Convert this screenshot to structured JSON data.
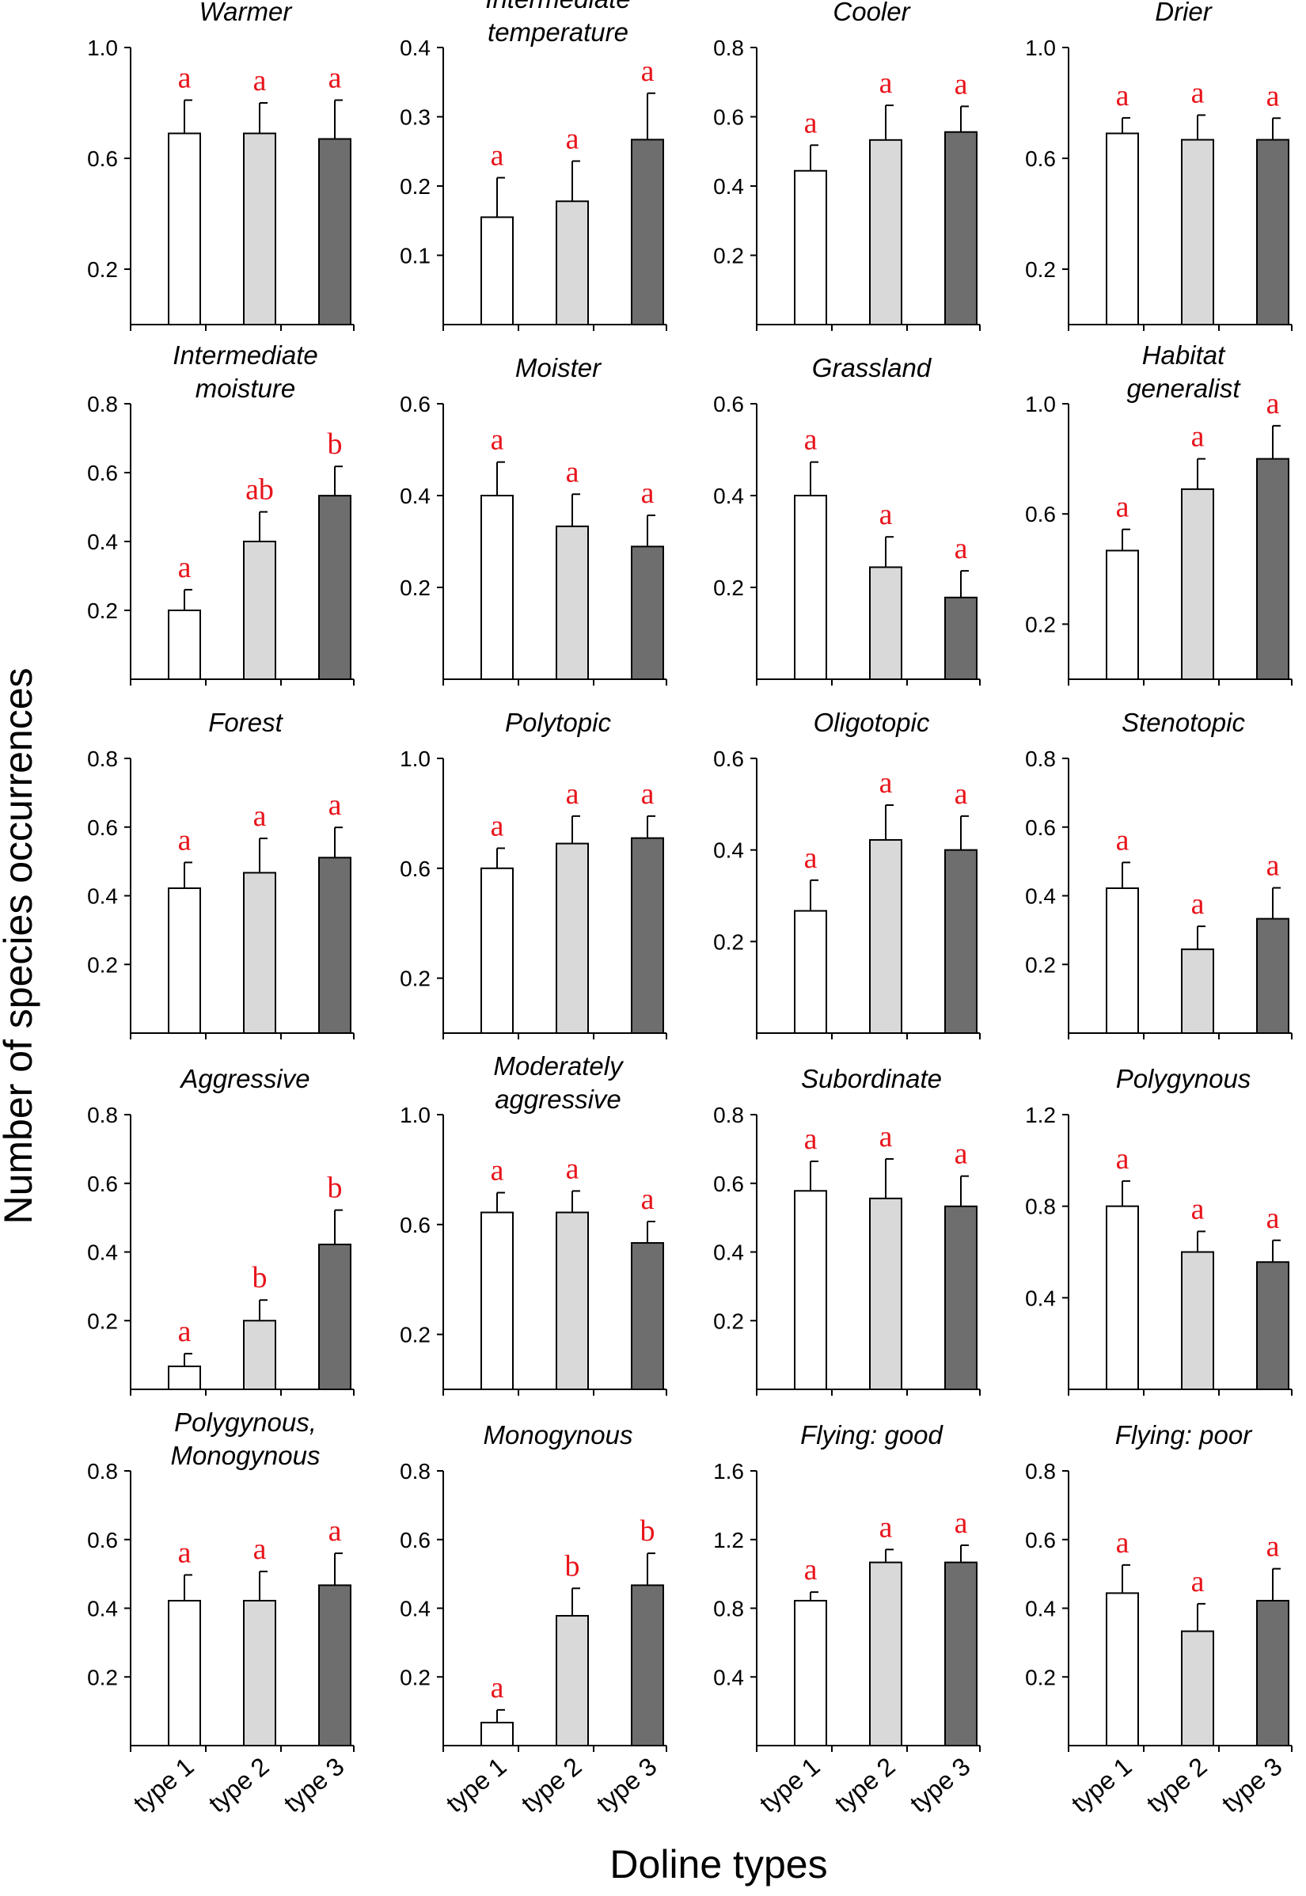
{
  "chart_data": {
    "type": "bar",
    "ylabel": "Number of species occurrences",
    "xlabel": "Doline types",
    "categories": [
      "type 1",
      "type 2",
      "type 3"
    ],
    "colors": [
      "#ffffff",
      "#d9d9d9",
      "#6e6e6e"
    ],
    "stroke_color": "#000000",
    "letter_color": "#e8141b",
    "panels": [
      {
        "title": [
          "Warmer"
        ],
        "ylim": [
          0,
          1.0
        ],
        "yticks": [
          "0.2",
          "0.6",
          "1.0"
        ],
        "values": [
          0.69,
          0.69,
          0.67
        ],
        "errors": [
          0.12,
          0.11,
          0.14
        ],
        "letters": [
          "a",
          "a",
          "a"
        ]
      },
      {
        "title": [
          "Intermediate",
          "temperature"
        ],
        "ylim": [
          0,
          0.4
        ],
        "yticks": [
          "0.1",
          "0.2",
          "0.3",
          "0.4"
        ],
        "values": [
          0.155,
          0.178,
          0.267
        ],
        "errors": [
          0.057,
          0.058,
          0.067
        ],
        "letters": [
          "a",
          "a",
          "a"
        ]
      },
      {
        "title": [
          "Cooler"
        ],
        "ylim": [
          0,
          0.8
        ],
        "yticks": [
          "0.2",
          "0.4",
          "0.6",
          "0.8"
        ],
        "values": [
          0.444,
          0.533,
          0.556
        ],
        "errors": [
          0.074,
          0.1,
          0.074
        ],
        "letters": [
          "a",
          "a",
          "a"
        ]
      },
      {
        "title": [
          "Drier"
        ],
        "ylim": [
          0,
          1.0
        ],
        "yticks": [
          "0.2",
          "0.6",
          "1.0"
        ],
        "values": [
          0.69,
          0.667,
          0.667
        ],
        "errors": [
          0.056,
          0.089,
          0.078
        ],
        "letters": [
          "a",
          "a",
          "a"
        ]
      },
      {
        "title": [
          "Intermediate",
          "moisture"
        ],
        "ylim": [
          0,
          0.8
        ],
        "yticks": [
          "0.2",
          "0.4",
          "0.6",
          "0.8"
        ],
        "values": [
          0.2,
          0.4,
          0.533
        ],
        "errors": [
          0.06,
          0.086,
          0.085
        ],
        "letters": [
          "a",
          "ab",
          "b"
        ]
      },
      {
        "title": [
          "Moister"
        ],
        "ylim": [
          0,
          0.6
        ],
        "yticks": [
          "0.2",
          "0.4",
          "0.6"
        ],
        "values": [
          0.4,
          0.333,
          0.289
        ],
        "errors": [
          0.073,
          0.07,
          0.068
        ],
        "letters": [
          "a",
          "a",
          "a"
        ]
      },
      {
        "title": [
          "Grassland"
        ],
        "ylim": [
          0,
          0.6
        ],
        "yticks": [
          "0.2",
          "0.4",
          "0.6"
        ],
        "values": [
          0.4,
          0.244,
          0.178
        ],
        "errors": [
          0.073,
          0.066,
          0.058
        ],
        "letters": [
          "a",
          "a",
          "a"
        ]
      },
      {
        "title": [
          "Habitat",
          "generalist"
        ],
        "ylim": [
          0,
          1.0
        ],
        "yticks": [
          "0.2",
          "0.6",
          "1.0"
        ],
        "values": [
          0.467,
          0.69,
          0.8
        ],
        "errors": [
          0.077,
          0.11,
          0.12
        ],
        "letters": [
          "a",
          "a",
          "a"
        ]
      },
      {
        "title": [
          "Forest"
        ],
        "ylim": [
          0,
          0.8
        ],
        "yticks": [
          "0.2",
          "0.4",
          "0.6",
          "0.8"
        ],
        "values": [
          0.422,
          0.467,
          0.511
        ],
        "errors": [
          0.075,
          0.1,
          0.088
        ],
        "letters": [
          "a",
          "a",
          "a"
        ]
      },
      {
        "title": [
          "Polytopic"
        ],
        "ylim": [
          0,
          1.0
        ],
        "yticks": [
          "0.2",
          "0.6",
          "1.0"
        ],
        "values": [
          0.6,
          0.69,
          0.71
        ],
        "errors": [
          0.073,
          0.1,
          0.08
        ],
        "letters": [
          "a",
          "a",
          "a"
        ]
      },
      {
        "title": [
          "Oligotopic"
        ],
        "ylim": [
          0,
          0.6
        ],
        "yticks": [
          "0.2",
          "0.4",
          "0.6"
        ],
        "values": [
          0.267,
          0.422,
          0.4
        ],
        "errors": [
          0.067,
          0.076,
          0.074
        ],
        "letters": [
          "a",
          "a",
          "a"
        ]
      },
      {
        "title": [
          "Stenotopic"
        ],
        "ylim": [
          0,
          0.8
        ],
        "yticks": [
          "0.2",
          "0.4",
          "0.6",
          "0.8"
        ],
        "values": [
          0.422,
          0.244,
          0.333
        ],
        "errors": [
          0.075,
          0.067,
          0.09
        ],
        "letters": [
          "a",
          "a",
          "a"
        ]
      },
      {
        "title": [
          "Aggressive"
        ],
        "ylim": [
          0,
          0.8
        ],
        "yticks": [
          "0.2",
          "0.4",
          "0.6",
          "0.8"
        ],
        "values": [
          0.067,
          0.2,
          0.422
        ],
        "errors": [
          0.037,
          0.06,
          0.1
        ],
        "letters": [
          "a",
          "b",
          "b"
        ]
      },
      {
        "title": [
          "Moderately",
          "aggressive"
        ],
        "ylim": [
          0,
          1.0
        ],
        "yticks": [
          "0.2",
          "0.6",
          "1.0"
        ],
        "values": [
          0.644,
          0.644,
          0.533
        ],
        "errors": [
          0.072,
          0.078,
          0.078
        ],
        "letters": [
          "a",
          "a",
          "a"
        ]
      },
      {
        "title": [
          "Subordinate"
        ],
        "ylim": [
          0,
          0.8
        ],
        "yticks": [
          "0.2",
          "0.4",
          "0.6",
          "0.8"
        ],
        "values": [
          0.578,
          0.556,
          0.533
        ],
        "errors": [
          0.086,
          0.115,
          0.088
        ],
        "letters": [
          "a",
          "a",
          "a"
        ]
      },
      {
        "title": [
          "Polygynous"
        ],
        "ylim": [
          0,
          1.2
        ],
        "yticks": [
          "0.4",
          "0.8",
          "1.2"
        ],
        "values": [
          0.8,
          0.6,
          0.556
        ],
        "errors": [
          0.11,
          0.09,
          0.095
        ],
        "letters": [
          "a",
          "a",
          "a"
        ]
      },
      {
        "title": [
          "Polygynous,",
          "Monogynous"
        ],
        "ylim": [
          0,
          0.8
        ],
        "yticks": [
          "0.2",
          "0.4",
          "0.6",
          "0.8"
        ],
        "values": [
          0.422,
          0.422,
          0.467
        ],
        "errors": [
          0.075,
          0.085,
          0.093
        ],
        "letters": [
          "a",
          "a",
          "a"
        ]
      },
      {
        "title": [
          "Monogynous"
        ],
        "ylim": [
          0,
          0.8
        ],
        "yticks": [
          "0.2",
          "0.4",
          "0.6",
          "0.8"
        ],
        "values": [
          0.067,
          0.378,
          0.467
        ],
        "errors": [
          0.037,
          0.08,
          0.093
        ],
        "letters": [
          "a",
          "b",
          "b"
        ]
      },
      {
        "title": [
          "Flying: good"
        ],
        "ylim": [
          0,
          1.6
        ],
        "yticks": [
          "0.4",
          "0.8",
          "1.2",
          "1.6"
        ],
        "values": [
          0.844,
          1.067,
          1.067
        ],
        "errors": [
          0.05,
          0.075,
          0.1
        ],
        "letters": [
          "a",
          "a",
          "a"
        ]
      },
      {
        "title": [
          "Flying: poor"
        ],
        "ylim": [
          0,
          0.8
        ],
        "yticks": [
          "0.2",
          "0.4",
          "0.6",
          "0.8"
        ],
        "values": [
          0.444,
          0.333,
          0.422
        ],
        "errors": [
          0.082,
          0.08,
          0.093
        ],
        "letters": [
          "a",
          "a",
          "a"
        ]
      }
    ]
  }
}
